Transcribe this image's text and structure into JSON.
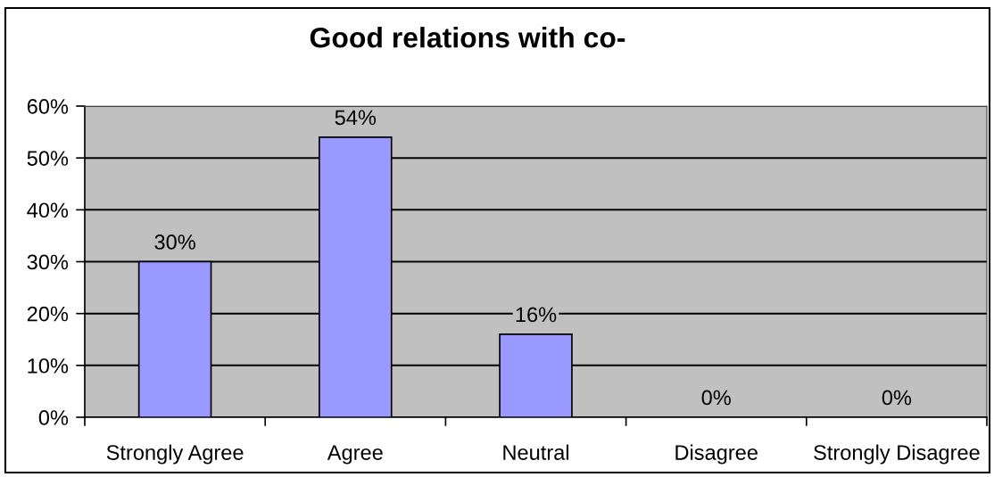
{
  "chart_data": {
    "type": "bar",
    "title": "Good relations with co-",
    "categories": [
      "Strongly Agree",
      "Agree",
      "Neutral",
      "Disagree",
      "Strongly Disagree"
    ],
    "values": [
      30,
      54,
      16,
      0,
      0
    ],
    "value_labels": [
      "30%",
      "54%",
      "16%",
      "0%",
      "0%"
    ],
    "color": "#9999ff",
    "ylim": [
      0,
      60
    ],
    "yticks": [
      {
        "value": 0,
        "label": "0%"
      },
      {
        "value": 10,
        "label": "10%"
      },
      {
        "value": 20,
        "label": "20%"
      },
      {
        "value": 30,
        "label": "30%"
      },
      {
        "value": 40,
        "label": "40%"
      },
      {
        "value": 50,
        "label": "50%"
      },
      {
        "value": 60,
        "label": "60%"
      }
    ],
    "grid": "y"
  }
}
